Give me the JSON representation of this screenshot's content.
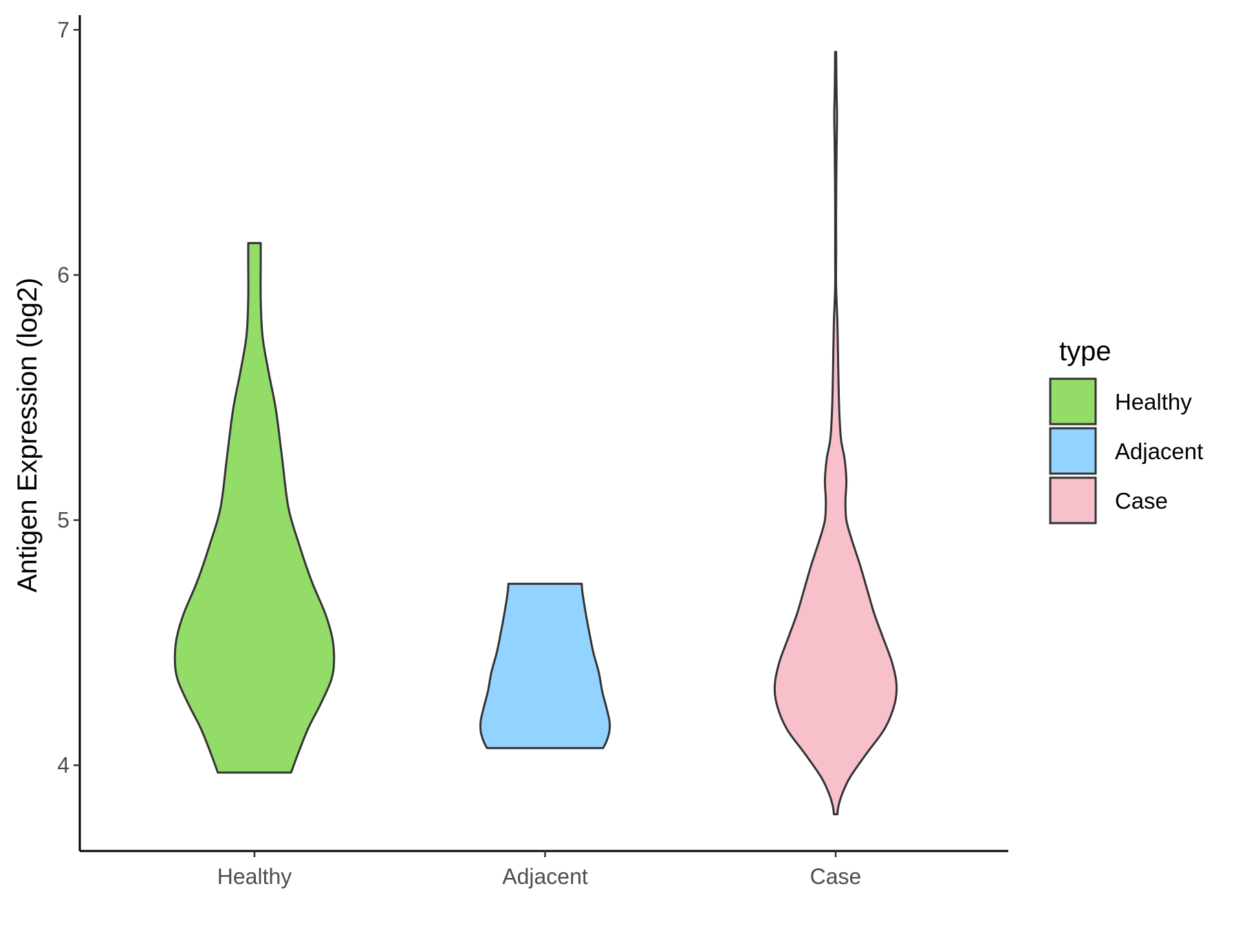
{
  "chart_data": {
    "type": "violin",
    "ylabel": "Antigen Expression (log2)",
    "xlabel": "",
    "ylim": [
      3.65,
      7.06
    ],
    "yticks": [
      4,
      5,
      6,
      7
    ],
    "categories": [
      "Healthy",
      "Adjacent",
      "Case"
    ],
    "legend": {
      "title": "type",
      "position": "right",
      "entries": [
        {
          "label": "Healthy",
          "color": "#93dc68"
        },
        {
          "label": "Adjacent",
          "color": "#93d3ff"
        },
        {
          "label": "Case",
          "color": "#f7c0cb"
        }
      ]
    },
    "series": [
      {
        "category": "Healthy",
        "color": "#93dc68",
        "min": 3.97,
        "max": 6.13,
        "profile": [
          [
            3.97,
            0.41
          ],
          [
            4.05,
            0.49
          ],
          [
            4.15,
            0.6
          ],
          [
            4.25,
            0.74
          ],
          [
            4.35,
            0.86
          ],
          [
            4.43,
            0.89
          ],
          [
            4.52,
            0.87
          ],
          [
            4.62,
            0.79
          ],
          [
            4.75,
            0.64
          ],
          [
            4.9,
            0.5
          ],
          [
            5.05,
            0.38
          ],
          [
            5.25,
            0.31
          ],
          [
            5.45,
            0.24
          ],
          [
            5.6,
            0.16
          ],
          [
            5.75,
            0.09
          ],
          [
            5.9,
            0.07
          ],
          [
            6.05,
            0.07
          ],
          [
            6.13,
            0.07
          ]
        ]
      },
      {
        "category": "Adjacent",
        "color": "#93d3ff",
        "min": 4.07,
        "max": 4.74,
        "profile": [
          [
            4.07,
            0.65
          ],
          [
            4.1,
            0.69
          ],
          [
            4.14,
            0.72
          ],
          [
            4.18,
            0.72
          ],
          [
            4.23,
            0.69
          ],
          [
            4.3,
            0.64
          ],
          [
            4.38,
            0.6
          ],
          [
            4.46,
            0.54
          ],
          [
            4.55,
            0.49
          ],
          [
            4.63,
            0.45
          ],
          [
            4.7,
            0.42
          ],
          [
            4.74,
            0.41
          ]
        ]
      },
      {
        "category": "Case",
        "color": "#f7c0cb",
        "min": 3.8,
        "max": 6.91,
        "profile": [
          [
            3.8,
            0.02
          ],
          [
            3.83,
            0.03
          ],
          [
            3.88,
            0.07
          ],
          [
            3.95,
            0.16
          ],
          [
            4.05,
            0.35
          ],
          [
            4.15,
            0.55
          ],
          [
            4.25,
            0.66
          ],
          [
            4.33,
            0.68
          ],
          [
            4.42,
            0.63
          ],
          [
            4.52,
            0.53
          ],
          [
            4.62,
            0.43
          ],
          [
            4.72,
            0.35
          ],
          [
            4.82,
            0.27
          ],
          [
            4.92,
            0.18
          ],
          [
            5.0,
            0.12
          ],
          [
            5.08,
            0.11
          ],
          [
            5.16,
            0.12
          ],
          [
            5.25,
            0.1
          ],
          [
            5.33,
            0.06
          ],
          [
            5.45,
            0.04
          ],
          [
            5.6,
            0.03
          ],
          [
            5.8,
            0.02
          ],
          [
            5.95,
            0.005
          ],
          [
            6.1,
            0.005
          ],
          [
            6.3,
            0.005
          ],
          [
            6.5,
            0.01
          ],
          [
            6.65,
            0.015
          ],
          [
            6.75,
            0.01
          ],
          [
            6.91,
            0.005
          ]
        ]
      }
    ]
  }
}
